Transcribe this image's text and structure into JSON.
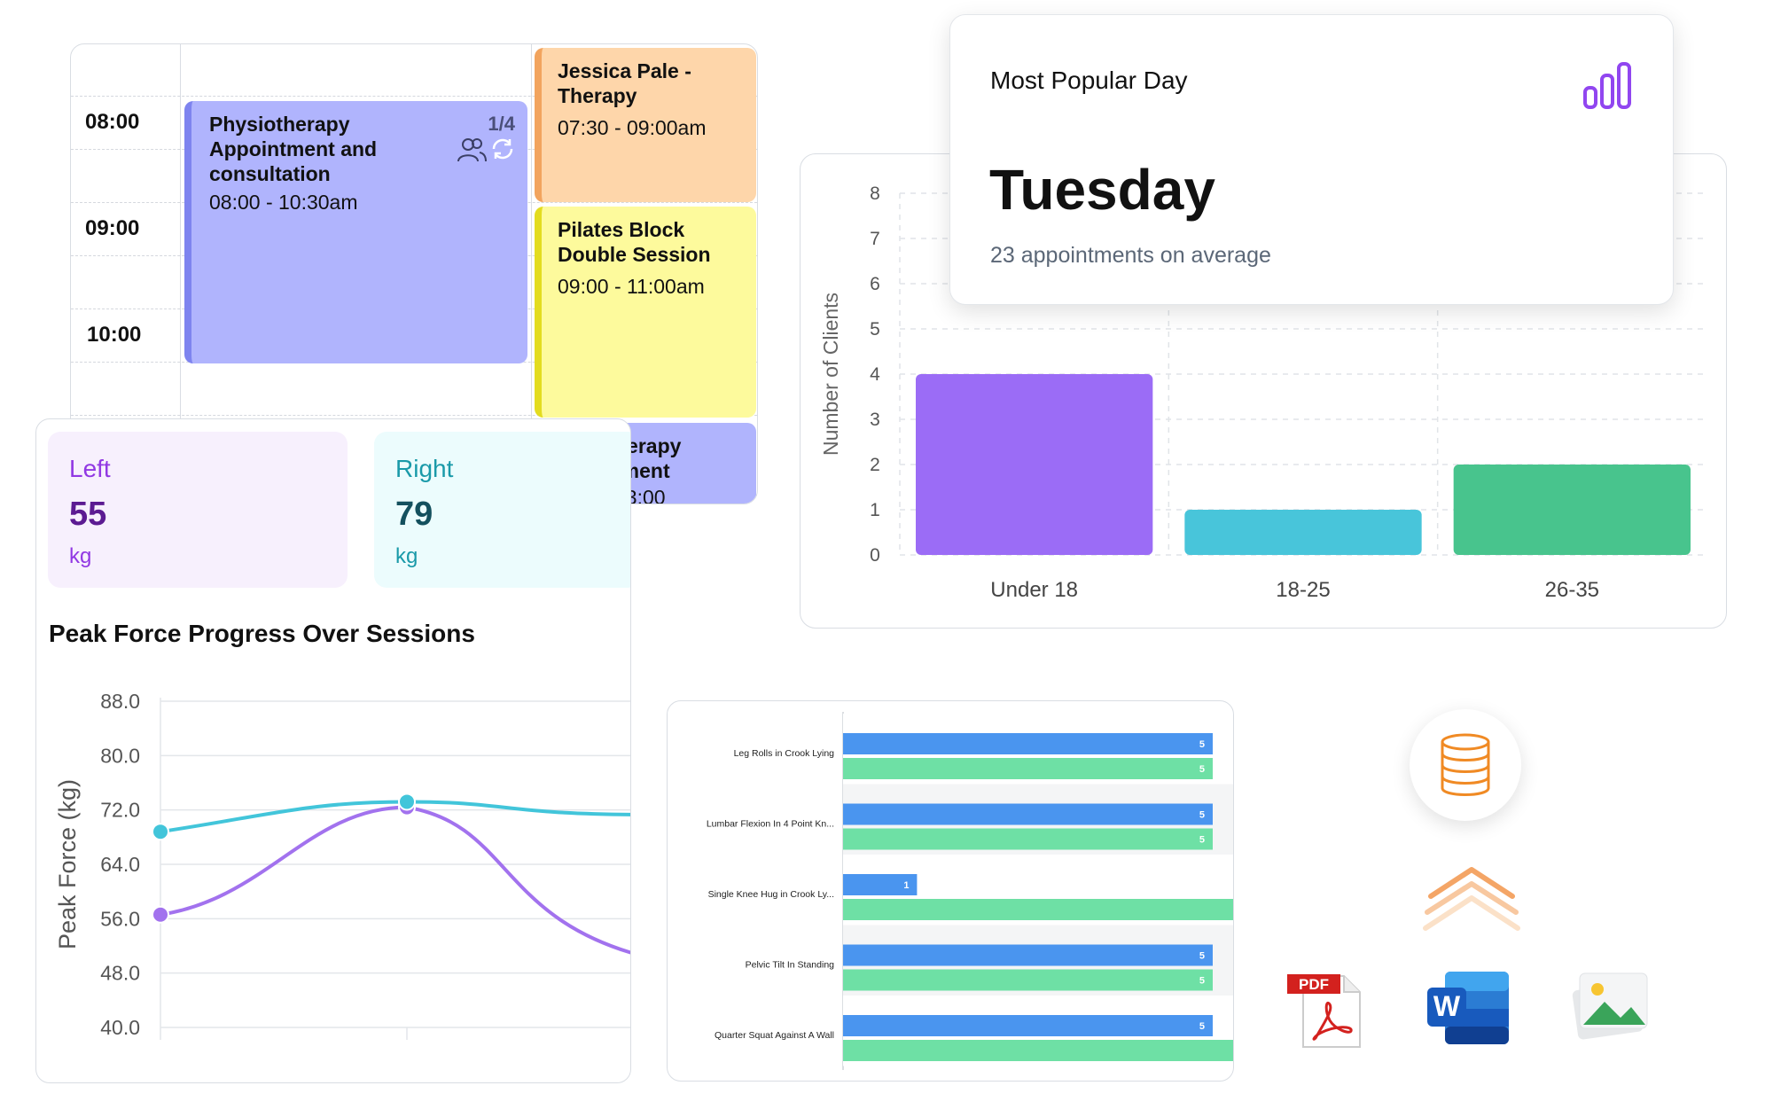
{
  "calendar": {
    "times": [
      "08:00",
      "09:00",
      "10:00"
    ],
    "events": [
      {
        "title": "Physiotherapy Appointment and consultation",
        "time": "08:00 - 10:30am",
        "counter": "1/4"
      },
      {
        "title": "Jessica Pale - Therapy",
        "time": "07:30 - 09:00am"
      },
      {
        "title": "Pilates Block Double Session",
        "time": "09:00 - 11:00am"
      },
      {
        "title": "herapy",
        "title2": "tment",
        "time": "13:00"
      }
    ]
  },
  "popular": {
    "label": "Most Popular Day",
    "day": "Tuesday",
    "subtitle": "23 appointments on average",
    "icon": "bar-chart-icon"
  },
  "force": {
    "left": {
      "label": "Left",
      "value": "55",
      "unit": "kg"
    },
    "right": {
      "label": "Right",
      "value": "79",
      "unit": "kg"
    },
    "title": "Peak Force Progress Over Sessions"
  },
  "chart_data": [
    {
      "type": "bar",
      "title": "",
      "xlabel": "",
      "ylabel": "Number of Clients",
      "categories": [
        "Under 18",
        "18-25",
        "26-35"
      ],
      "values": [
        4,
        1,
        2
      ],
      "colors": [
        "#9b6cf6",
        "#48c5da",
        "#48c48d"
      ],
      "ylim": [
        0,
        8
      ],
      "yticks": [
        0,
        1,
        2,
        3,
        4,
        5,
        6,
        7,
        8
      ],
      "grid": true
    },
    {
      "type": "line",
      "title": "Peak Force Progress Over Sessions",
      "ylabel": "Peak Force (kg)",
      "ylim": [
        40,
        88
      ],
      "yticks": [
        "88.0",
        "80.0",
        "72.0",
        "64.0",
        "56.0",
        "48.0",
        "40.0"
      ],
      "x": [
        0,
        1,
        2
      ],
      "series": [
        {
          "values": [
            68.8,
            73.2,
            71.3
          ],
          "color": "#42c5da"
        },
        {
          "values": [
            56.6,
            72.4,
            50
          ],
          "color": "#a272ee"
        }
      ]
    },
    {
      "type": "bar",
      "orientation": "horizontal",
      "categories": [
        "Leg Rolls in Crook Lying",
        "Lumbar Flexion In 4 Point Kn...",
        "Single Knee Hug in Crook Ly...",
        "Pelvic Tilt In Standing",
        "Quarter Squat Against A Wall"
      ],
      "series": [
        {
          "values": [
            5,
            5,
            1,
            5,
            5
          ],
          "color": "#4a95ef",
          "labels": [
            "5",
            "5",
            "1",
            "5",
            "5"
          ]
        },
        {
          "values": [
            5,
            5,
            5.3,
            5,
            5.3
          ],
          "color": "#6ee0a5",
          "labels": [
            "5",
            "5",
            "",
            "5",
            ""
          ]
        }
      ],
      "xlim": [
        0,
        5.3
      ]
    }
  ],
  "icons": [
    "database-icon",
    "chevrons-up-icon",
    "pdf-file-icon",
    "word-file-icon",
    "image-file-icon"
  ],
  "icon_labels": {
    "pdf": "PDF",
    "word": "W"
  }
}
